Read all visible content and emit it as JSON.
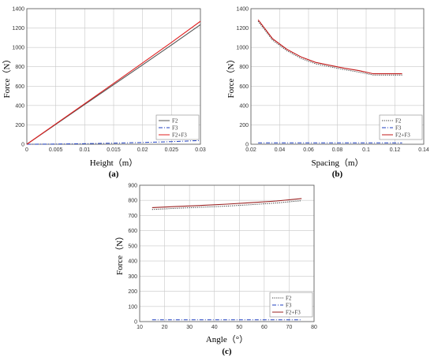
{
  "chart_data": [
    {
      "type": "line",
      "panel": "(a)",
      "xlabel": "Height（m）",
      "ylabel": "Force（N）",
      "xlim": [
        0,
        0.03
      ],
      "ylim": [
        0,
        1400
      ],
      "xticks": [
        0,
        0.005,
        0.01,
        0.015,
        0.02,
        0.025,
        0.03
      ],
      "xtick_labels": [
        "0",
        "0.005",
        "0.01",
        "0.015",
        "0.02",
        "0.025",
        "0.03"
      ],
      "yticks": [
        0,
        200,
        400,
        600,
        800,
        1000,
        1200,
        1400
      ],
      "ytick_labels": [
        "0",
        "200",
        "400",
        "600",
        "800",
        "1000",
        "1200",
        "1400"
      ],
      "grid": true,
      "legend_position": "bottom-right",
      "series": [
        {
          "name": "F2",
          "color": "#555555",
          "dash": "solid",
          "x": [
            0,
            0.005,
            0.01,
            0.015,
            0.02,
            0.025,
            0.03
          ],
          "y": [
            0,
            205,
            410,
            615,
            820,
            1025,
            1235
          ]
        },
        {
          "name": "F3",
          "color": "#1f3fbf",
          "dash": "dashdot",
          "x": [
            0,
            0.005,
            0.01,
            0.015,
            0.02,
            0.025,
            0.03
          ],
          "y": [
            0,
            2,
            6,
            11,
            18,
            27,
            38
          ]
        },
        {
          "name": "F2+F3",
          "color": "#e02020",
          "dash": "solid",
          "x": [
            0,
            0.005,
            0.01,
            0.015,
            0.02,
            0.025,
            0.03
          ],
          "y": [
            0,
            210,
            418,
            628,
            840,
            1052,
            1270
          ]
        }
      ]
    },
    {
      "type": "line",
      "panel": "(b)",
      "xlabel": "Spacing（m）",
      "ylabel": "Force（N）",
      "xlim": [
        0.02,
        0.14
      ],
      "ylim": [
        0,
        1400
      ],
      "xticks": [
        0.02,
        0.04,
        0.06,
        0.08,
        0.1,
        0.12,
        0.14
      ],
      "xtick_labels": [
        "0.02",
        "0.04",
        "0.06",
        "0.08",
        "0.1",
        "0.12",
        "0.14"
      ],
      "yticks": [
        0,
        200,
        400,
        600,
        800,
        1000,
        1200,
        1400
      ],
      "ytick_labels": [
        "0",
        "200",
        "400",
        "600",
        "800",
        "1000",
        "1200",
        "1400"
      ],
      "grid": true,
      "legend_position": "bottom-right",
      "series": [
        {
          "name": "F2",
          "color": "#333333",
          "dash": "dotted",
          "x": [
            0.025,
            0.035,
            0.045,
            0.055,
            0.065,
            0.075,
            0.085,
            0.095,
            0.105,
            0.115,
            0.125
          ],
          "y": [
            1270,
            1075,
            965,
            885,
            830,
            800,
            770,
            745,
            715,
            715,
            715
          ]
        },
        {
          "name": "F3",
          "color": "#1f3fbf",
          "dash": "dashdot",
          "x": [
            0.025,
            0.035,
            0.045,
            0.055,
            0.065,
            0.075,
            0.085,
            0.095,
            0.105,
            0.115,
            0.125
          ],
          "y": [
            15,
            15,
            15,
            15,
            15,
            15,
            15,
            15,
            15,
            15,
            15
          ]
        },
        {
          "name": "F2+F3",
          "color": "#c01818",
          "dash": "solid",
          "x": [
            0.025,
            0.035,
            0.045,
            0.055,
            0.065,
            0.075,
            0.085,
            0.095,
            0.105,
            0.115,
            0.125
          ],
          "y": [
            1285,
            1090,
            980,
            900,
            845,
            815,
            785,
            760,
            728,
            728,
            728
          ]
        }
      ]
    },
    {
      "type": "line",
      "panel": "(c)",
      "xlabel": "Angle（°）",
      "ylabel": "Force（N）",
      "xlim": [
        10,
        80
      ],
      "ylim": [
        0,
        900
      ],
      "xticks": [
        10,
        20,
        30,
        40,
        50,
        60,
        70,
        80
      ],
      "xtick_labels": [
        "10",
        "20",
        "30",
        "40",
        "50",
        "60",
        "70",
        "80"
      ],
      "yticks": [
        0,
        100,
        200,
        300,
        400,
        500,
        600,
        700,
        800,
        900
      ],
      "ytick_labels": [
        "0",
        "100",
        "200",
        "300",
        "400",
        "500",
        "600",
        "700",
        "800",
        "900"
      ],
      "grid": true,
      "legend_position": "bottom-right",
      "series": [
        {
          "name": "F2",
          "color": "#333333",
          "dash": "dotted",
          "x": [
            15,
            25,
            35,
            45,
            55,
            65,
            75
          ],
          "y": [
            740,
            748,
            755,
            762,
            772,
            783,
            798
          ]
        },
        {
          "name": "F3",
          "color": "#1f3fbf",
          "dash": "dashdot",
          "x": [
            15,
            25,
            35,
            45,
            55,
            65,
            75
          ],
          "y": [
            12,
            12,
            12,
            12,
            12,
            12,
            12
          ]
        },
        {
          "name": "F2+F3",
          "color": "#9a2020",
          "dash": "solid",
          "x": [
            15,
            25,
            35,
            45,
            55,
            65,
            75
          ],
          "y": [
            752,
            760,
            767,
            775,
            785,
            796,
            812
          ]
        }
      ]
    }
  ]
}
